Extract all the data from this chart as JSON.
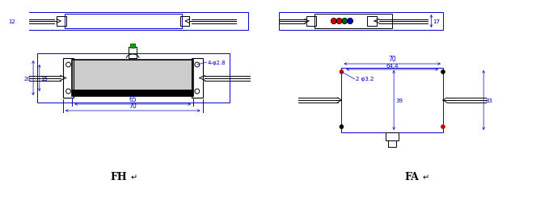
{
  "bg_color": "#ffffff",
  "blue": "#0000cc",
  "black": "#000000",
  "red": "#cc0000",
  "green": "#006600",
  "gray": "#555555",
  "label_FH": "FH",
  "label_FA": "FA",
  "dim_12": "12",
  "dim_20": "20",
  "dim_15": "15",
  "dim_65": "65",
  "dim_70": "70",
  "dim_4holes": "4-φ2.8",
  "dim_17": "17",
  "dim_70b": "70",
  "dim_644": "64.4",
  "dim_2holes": "2 φ3.2",
  "dim_39": "39",
  "dim_83": "83"
}
